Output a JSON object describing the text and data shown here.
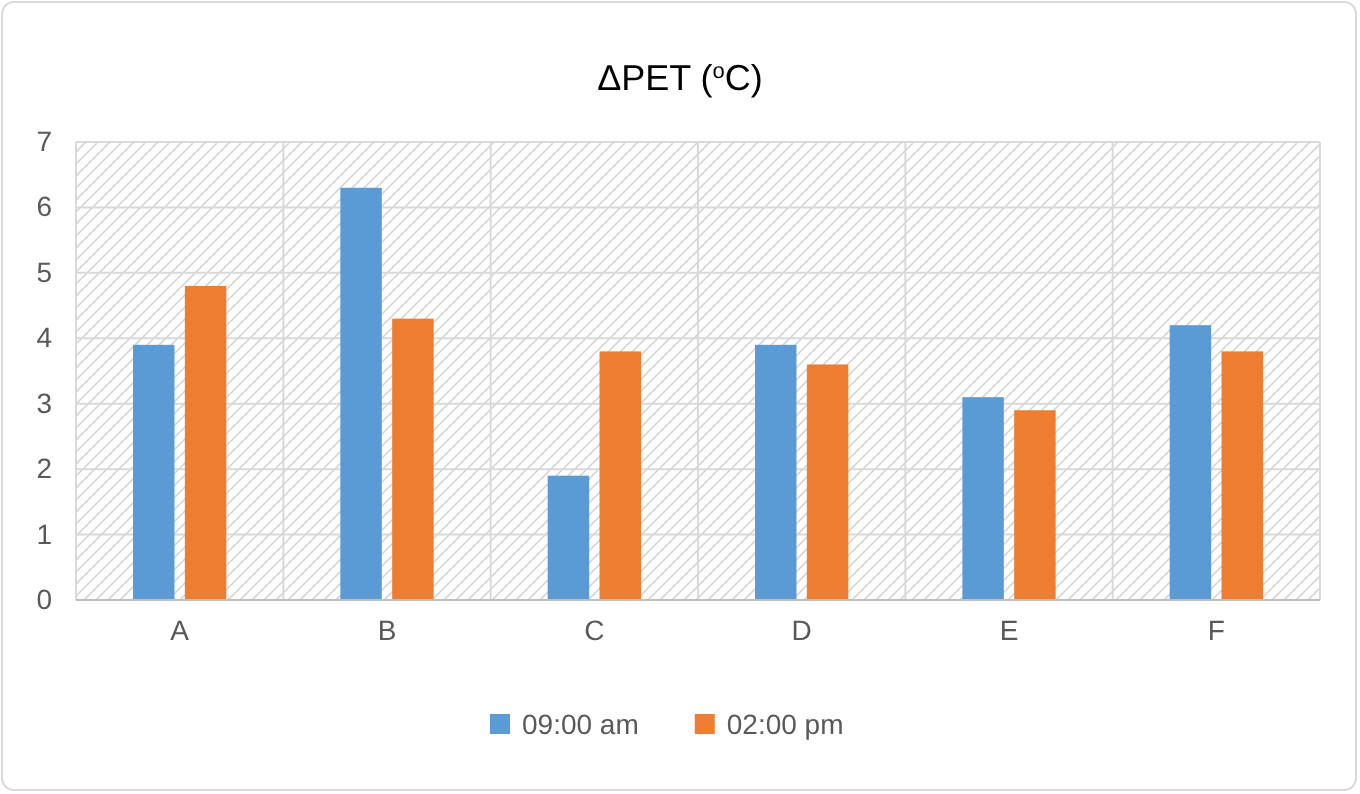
{
  "chart_data": {
    "type": "bar",
    "title": "ΔPET ($^{o}$C)",
    "categories": [
      "A",
      "B",
      "C",
      "D",
      "E",
      "F"
    ],
    "series": [
      {
        "name": "09:00 am",
        "color": "#5b9bd5",
        "values": [
          3.9,
          6.3,
          1.9,
          3.9,
          3.1,
          4.2
        ]
      },
      {
        "name": "02:00 pm",
        "color": "#ed7d31",
        "values": [
          4.8,
          4.3,
          3.8,
          3.6,
          2.9,
          3.8
        ]
      }
    ],
    "ylim": [
      0,
      7
    ],
    "yticks": [
      0,
      1,
      2,
      3,
      4,
      5,
      6,
      7
    ],
    "grid": true,
    "legend": "bottom"
  }
}
